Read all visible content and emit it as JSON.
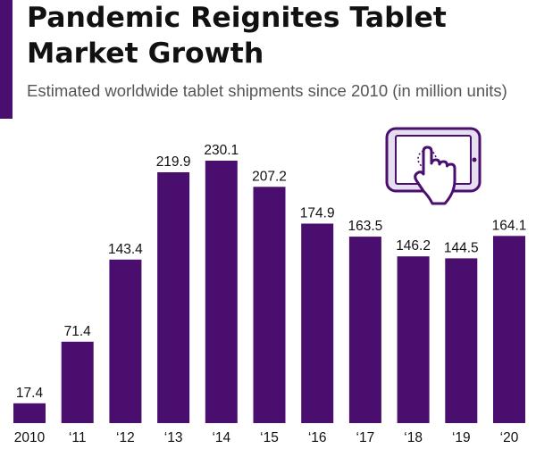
{
  "title": "Pandemic Reignites Tablet Market Growth",
  "subtitle": "Estimated worldwide tablet shipments since 2010 (in million units)",
  "icons": {
    "tablet": "tablet-touch-icon"
  },
  "colors": {
    "bar": "#4a0e6f",
    "accent": "#4a0e6f",
    "icon_fill": "#e6dff0",
    "icon_stroke": "#4a0e6f"
  },
  "chart_data": {
    "type": "bar",
    "title": "Pandemic Reignites Tablet Market Growth",
    "subtitle": "Estimated worldwide tablet shipments since 2010 (in million units)",
    "xlabel": "",
    "ylabel": "",
    "categories": [
      "2010",
      "‘11",
      "‘12",
      "‘13",
      "‘14",
      "‘15",
      "‘16",
      "‘17",
      "‘18",
      "‘19",
      "‘20"
    ],
    "values": [
      17.4,
      71.4,
      143.4,
      219.9,
      230.1,
      207.2,
      174.9,
      163.5,
      146.2,
      144.5,
      164.1
    ],
    "value_labels": [
      "17.4",
      "71.4",
      "143.4",
      "219.9",
      "230.1",
      "207.2",
      "174.9",
      "163.5",
      "146.2",
      "144.5",
      "164.1"
    ],
    "ylim": [
      0,
      230.1
    ],
    "grid": false,
    "legend": "none"
  }
}
